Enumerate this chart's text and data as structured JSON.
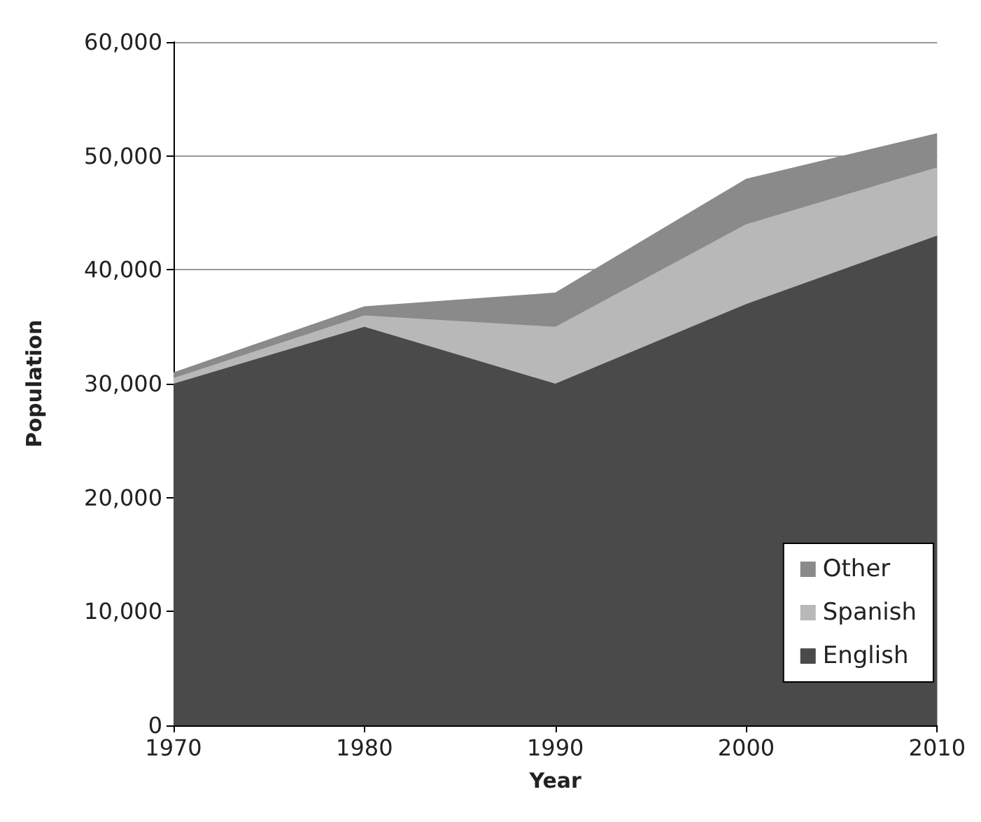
{
  "chart_data": {
    "type": "area",
    "stacked": true,
    "xlabel": "Year",
    "ylabel": "Population",
    "x": [
      1970,
      1980,
      1990,
      2000,
      2010
    ],
    "series": [
      {
        "name": "English",
        "color": "#4a4a4a",
        "values": [
          30000,
          35000,
          30000,
          37000,
          43000
        ]
      },
      {
        "name": "Spanish",
        "color": "#b8b8b8",
        "values": [
          500,
          1000,
          5000,
          7000,
          6000
        ]
      },
      {
        "name": "Other",
        "color": "#8a8a8a",
        "values": [
          500,
          800,
          3000,
          4000,
          3000
        ]
      }
    ],
    "xlim": [
      1970,
      2010
    ],
    "xticks": [
      1970,
      1980,
      1990,
      2000,
      2010
    ],
    "ylim": [
      0,
      60000
    ],
    "yticks": [
      0,
      {
        "value": 10000,
        "label": "10,000"
      },
      {
        "value": 20000,
        "label": "20,000"
      },
      {
        "value": 30000,
        "label": "30,000"
      },
      {
        "value": 40000,
        "label": "40,000"
      },
      {
        "value": 50000,
        "label": "50,000"
      },
      {
        "value": 60000,
        "label": "60,000"
      }
    ],
    "grid": "y",
    "legend": "bottom right"
  }
}
